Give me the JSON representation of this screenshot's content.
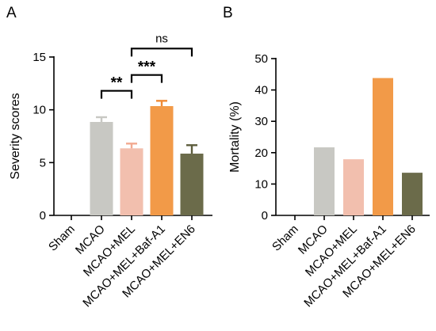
{
  "chart_data": [
    {
      "panel": "A",
      "type": "bar",
      "ylabel": "Severity scores",
      "ylim": [
        0,
        15
      ],
      "yticks": [
        "0",
        "5",
        "10",
        "15"
      ],
      "categories": [
        "Sham",
        "MCAO",
        "MCAO+MEL",
        "MCAO+MEL+Baf-A1",
        "MCAO+MEL+EN6"
      ],
      "values": [
        0,
        8.85,
        6.35,
        10.35,
        5.85
      ],
      "errors": [
        0,
        0.45,
        0.45,
        0.5,
        0.8
      ],
      "colors": [
        "#ffffff",
        "#c8c8c3",
        "#f2bfae",
        "#f29a48",
        "#6b6b4a"
      ],
      "error_colors": [
        "#000000",
        "#c8c8c3",
        "#f2a990",
        "#f08a35",
        "#5c5c3c"
      ],
      "significance": [
        {
          "from": 2,
          "to": 3,
          "label": "**",
          "y": 11.8
        },
        {
          "from": 3,
          "to": 4,
          "label": "***",
          "y": 13.3
        },
        {
          "from": 3,
          "to": 5,
          "label": "ns",
          "y": 15.8
        }
      ]
    },
    {
      "panel": "B",
      "type": "bar",
      "ylabel": "Mortality (%)",
      "ylim": [
        0,
        50
      ],
      "yticks": [
        "0",
        "10",
        "20",
        "30",
        "40",
        "50"
      ],
      "categories": [
        "Sham",
        "MCAO",
        "MCAO+MEL",
        "MCAO+MEL+Baf-A1",
        "MCAO+MEL+EN6"
      ],
      "values": [
        0,
        21.7,
        17.9,
        43.8,
        13.6
      ],
      "colors": [
        "#ffffff",
        "#c8c8c3",
        "#f2bfae",
        "#f29a48",
        "#6b6b4a"
      ]
    }
  ]
}
